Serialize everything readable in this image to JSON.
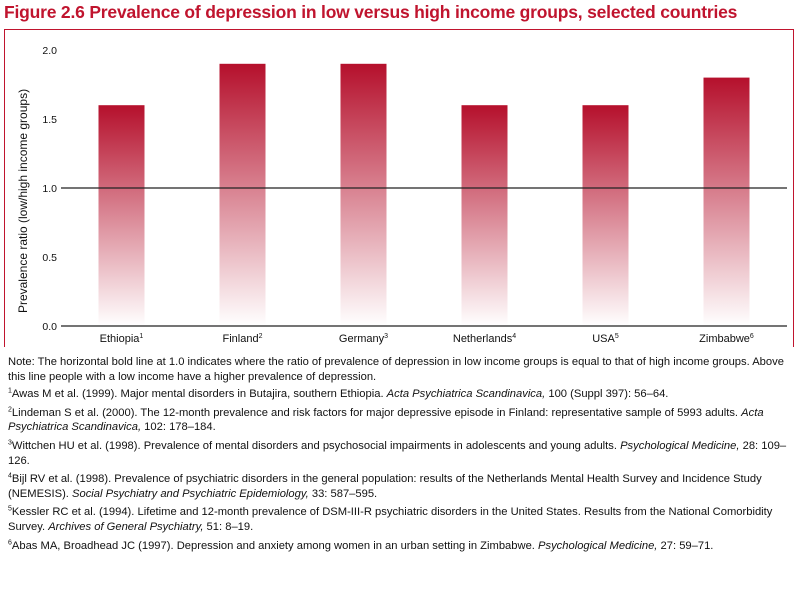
{
  "figure_title": "Figure 2.6 Prevalence of depression in low versus high income groups, selected countries",
  "chart_data": {
    "type": "bar",
    "categories": [
      "Ethiopia",
      "Finland",
      "Germany",
      "Netherlands",
      "USA",
      "Zimbabwe"
    ],
    "category_footnotes": [
      "1",
      "2",
      "3",
      "4",
      "5",
      "6"
    ],
    "values": [
      1.6,
      1.9,
      1.9,
      1.6,
      1.6,
      1.8
    ],
    "ylabel": "Prevalence ratio (low/high income groups)",
    "ylim": [
      0,
      2.0
    ],
    "yticks": [
      "0.0",
      "0.5",
      "1.0",
      "1.5",
      "2.0"
    ],
    "reference_line": 1.0,
    "grid": false,
    "bar_color_top": "#b5102c",
    "bar_color_bottom": "#ffffff"
  },
  "note": "Note: The horizontal bold line at 1.0 indicates where the ratio of prevalence of depression in low income groups is equal to that of high income groups. Above this line people with a low income have a higher prevalence of depression.",
  "references": [
    {
      "num": "1",
      "pre": "Awas M et al. (1999). Major mental disorders in Butajira, southern Ethiopia. ",
      "journal": "Acta Psychiatrica Scandinavica,",
      "post": " 100 (Suppl 397): 56–64."
    },
    {
      "num": "2",
      "pre": "Lindeman S et al. (2000). The 12-month prevalence and risk factors for major depressive episode in Finland: representative sample of 5993 adults. ",
      "journal": "Acta Psychiatrica Scandinavica,",
      "post": " 102: 178–184."
    },
    {
      "num": "3",
      "pre": "Wittchen HU et al. (1998). Prevalence of mental disorders and psychosocial impairments in adolescents and young adults. ",
      "journal": "Psychological Medicine,",
      "post": " 28: 109–126."
    },
    {
      "num": "4",
      "pre": "Bijl RV et al. (1998). Prevalence of psychiatric disorders in the general population: results of the Netherlands Mental Health Survey and Incidence Study (NEMESIS). ",
      "journal": "Social Psychiatry and Psychiatric Epidemiology,",
      "post": " 33: 587–595."
    },
    {
      "num": "5",
      "pre": "Kessler RC et al. (1994). Lifetime and 12-month prevalence of DSM-III-R psychiatric disorders in the United States. Results from the National Comorbidity Survey. ",
      "journal": "Archives of General Psychiatry,",
      "post": " 51: 8–19."
    },
    {
      "num": "6",
      "pre": "Abas MA, Broadhead JC (1997). Depression and anxiety among women in an urban setting in Zimbabwe. ",
      "journal": "Psychological Medicine,",
      "post": " 27: 59–71."
    }
  ]
}
